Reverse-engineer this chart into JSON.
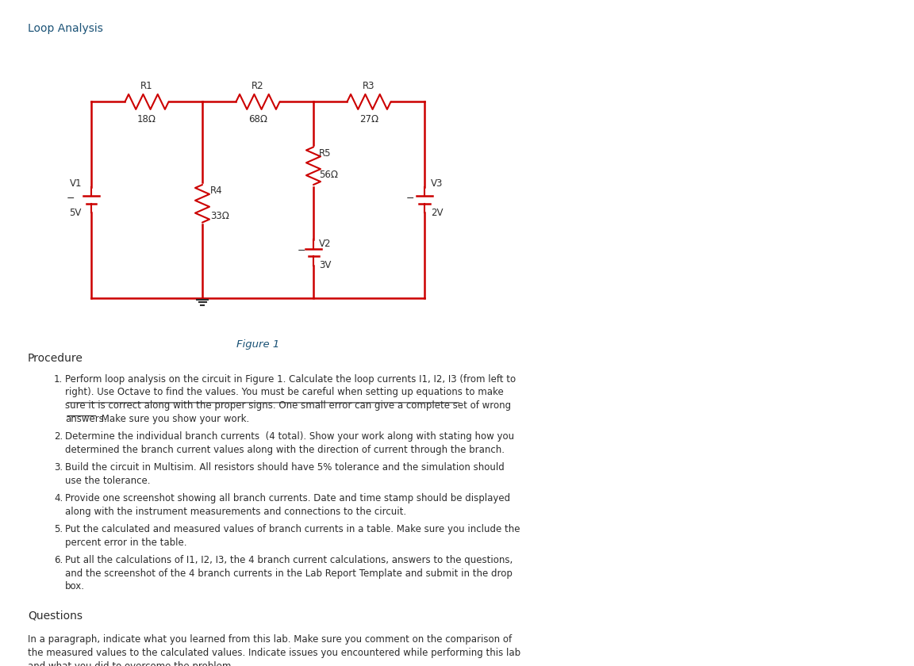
{
  "title": "Loop Analysis",
  "figure_label": "Figure 1",
  "bg_color": "#ffffff",
  "circuit_color": "#cc0000",
  "text_color": "#2c2c2c",
  "heading_color": "#1a5276",
  "procedure_heading": "Procedure",
  "questions_heading": "Questions",
  "procedure_items": [
    "Perform loop analysis on the circuit in Figure 1. Calculate the loop currents I1, I2, I3 (from left to\nright). Use Octave to find the values. You must be careful when setting up equations to make\nsure it is correct along with the proper signs. One small error can give a complete set of wrong\nanswers. Make sure you show your work.",
    "Determine the individual branch currents  (4 total). Show your work along with stating how you\ndetermined the branch current values along with the direction of current through the branch.",
    "Build the circuit in Multisim. All resistors should have 5% tolerance and the simulation should\nuse the tolerance.",
    "Provide one screenshot showing all branch currents. Date and time stamp should be displayed\nalong with the instrument measurements and connections to the circuit.",
    "Put the calculated and measured values of branch currents in a table. Make sure you include the\npercent error in the table.",
    "Put all the calculations of I1, I2, I3, the 4 branch current calculations, answers to the questions,\nand the screenshot of the 4 branch currents in the Lab Report Template and submit in the drop\nbox."
  ],
  "questions_text": "In a paragraph, indicate what you learned from this lab. Make sure you comment on the comparison of\nthe measured values to the calculated values. Indicate issues you encountered while performing this lab\nand what you did to overcome the problem."
}
